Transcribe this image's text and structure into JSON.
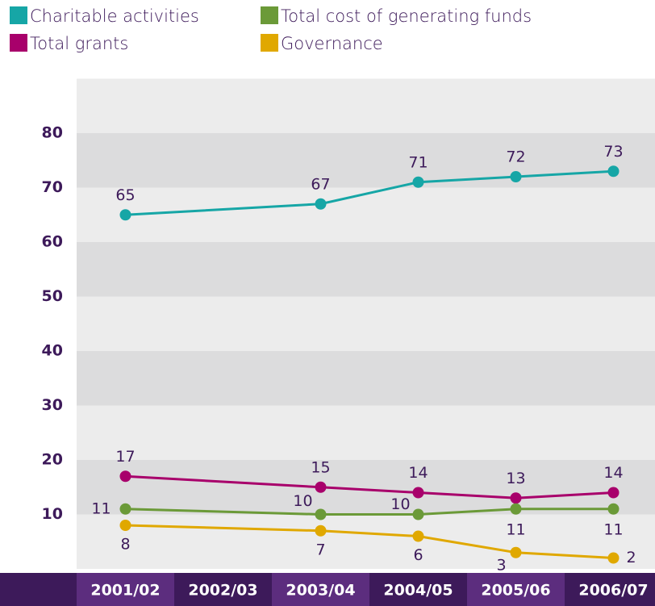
{
  "chart_data": {
    "type": "line",
    "x": [
      2001,
      2003,
      2004,
      2005,
      2006
    ],
    "xlim": [
      2000.5,
      2006.5
    ],
    "xticks": [
      {
        "value": 2001,
        "label": "2001/02"
      },
      {
        "value": 2002,
        "label": "2002/03"
      },
      {
        "value": 2003,
        "label": "2003/04"
      },
      {
        "value": 2004,
        "label": "2004/05"
      },
      {
        "value": 2005,
        "label": "2005/06"
      },
      {
        "value": 2006,
        "label": "2006/07"
      }
    ],
    "ylim": [
      0,
      90
    ],
    "yticks": [
      10,
      20,
      30,
      40,
      50,
      60,
      70,
      80
    ],
    "series": [
      {
        "name": "Charitable activities",
        "color": "#16a6a6",
        "values": [
          65,
          67,
          71,
          72,
          73
        ]
      },
      {
        "name": "Total grants",
        "color": "#a8006b",
        "values": [
          17,
          15,
          14,
          13,
          14
        ]
      },
      {
        "name": "Total cost of generating funds",
        "color": "#6b9a38",
        "values": [
          11,
          10,
          10,
          11,
          11
        ]
      },
      {
        "name": "Governance",
        "color": "#e0a800",
        "values": [
          8,
          7,
          6,
          3,
          2
        ]
      }
    ]
  }
}
